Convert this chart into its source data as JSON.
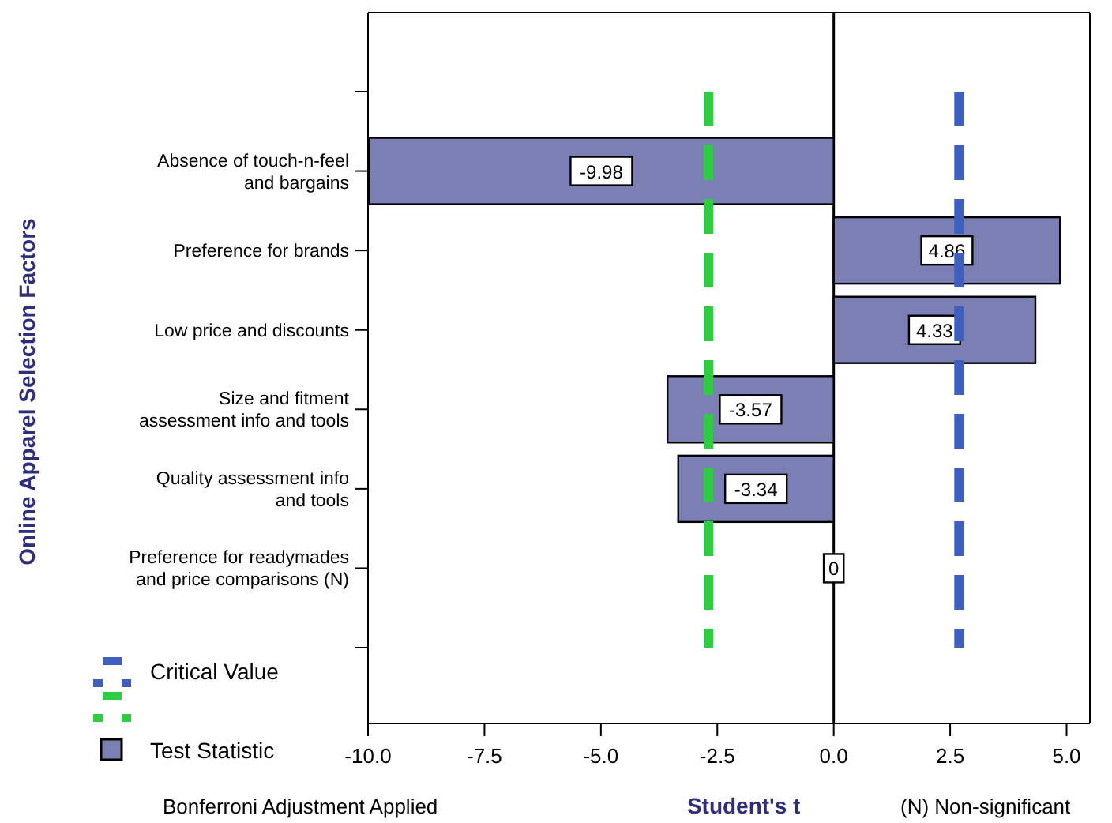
{
  "chart_data": {
    "type": "bar",
    "orientation": "horizontal",
    "ylabel": "Online Apparel Selection Factors",
    "xlabel": "Student's t",
    "categories": [
      null,
      "Absence of touch-n-feel\nand bargains",
      "Preference for brands",
      "Low price and discounts",
      "Size and fitment\nassessment info and tools",
      "Quality assessment info\nand tools",
      "Preference for readymades\nand price comparisons (N)",
      null
    ],
    "series": [
      {
        "name": "Test Statistic",
        "color": "#7b7fb3",
        "values": [
          null,
          -9.98,
          4.86,
          4.33,
          -3.57,
          -3.34,
          0,
          null
        ]
      }
    ],
    "data_labels": true,
    "xlim": [
      -10,
      5.5
    ],
    "xticks": [
      {
        "value": -10,
        "label": "-10.0"
      },
      {
        "value": -7.5,
        "label": "-7.5"
      },
      {
        "value": -5,
        "label": "-5.0"
      },
      {
        "value": -2.5,
        "label": "-2.5"
      },
      {
        "value": 0,
        "label": "0.0"
      },
      {
        "value": 2.5,
        "label": "2.5"
      },
      {
        "value": 5,
        "label": "5.0"
      }
    ],
    "ref_lines": [
      {
        "axis": "x",
        "value": 2.69,
        "label": "Critical Value",
        "color": "#3f5fbf",
        "line_style": "dashed"
      },
      {
        "axis": "x",
        "value": -2.69,
        "color": "#2ecc40",
        "line_style": "dashed"
      }
    ],
    "legend": "bottom left",
    "annotations": [
      "Bonferroni Adjustment Applied",
      "(N) Non-significant"
    ]
  }
}
